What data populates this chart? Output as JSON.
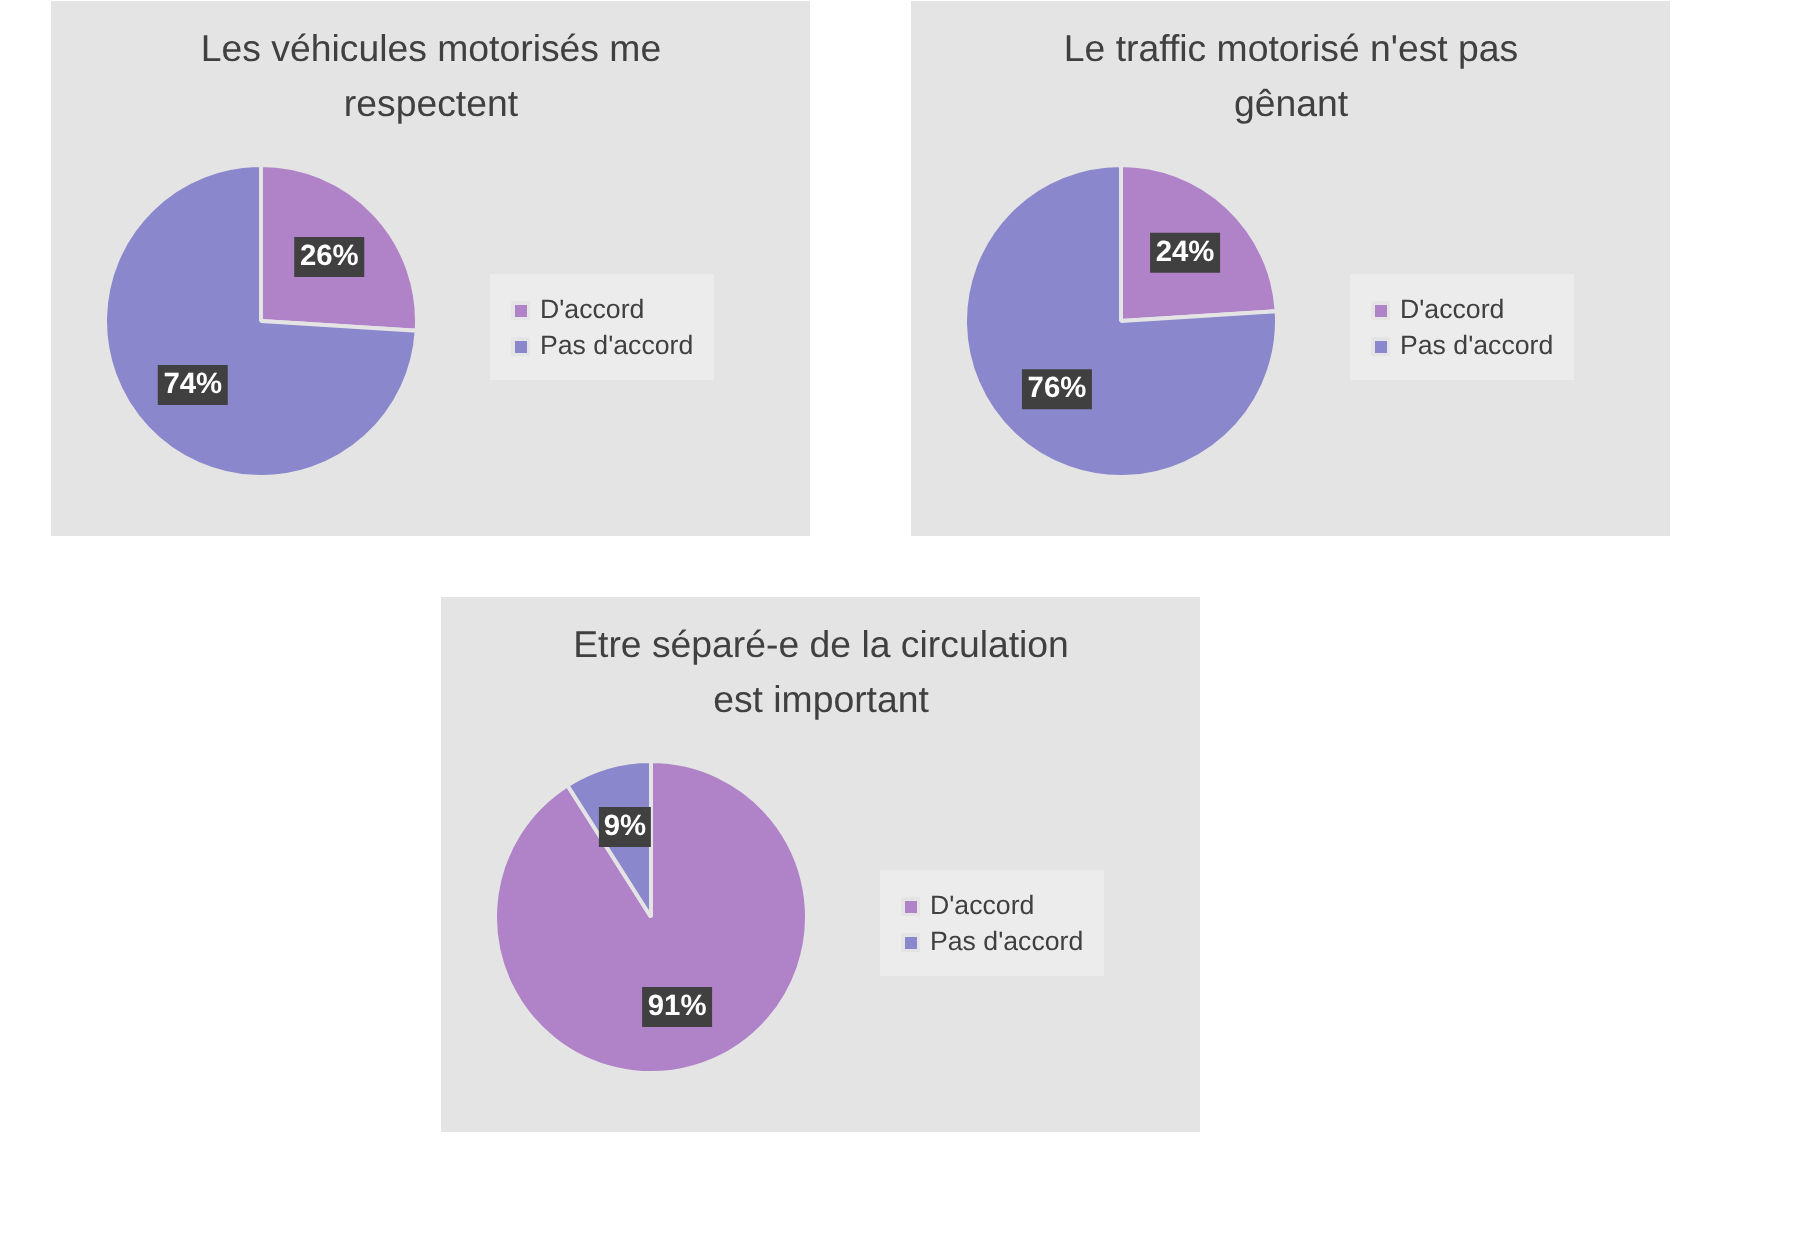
{
  "chart_data": [
    {
      "type": "pie",
      "title": "Les véhicules motorisés me respectent",
      "categories": [
        "D'accord",
        "Pas d'accord"
      ],
      "values": [
        26,
        74
      ],
      "colors": [
        "#b083c8",
        "#8a87cc"
      ],
      "value_labels": [
        "26%",
        "74%"
      ],
      "legend": "right"
    },
    {
      "type": "pie",
      "title": "Le traffic motorisé n'est pas gênant",
      "categories": [
        "D'accord",
        "Pas d'accord"
      ],
      "values": [
        24,
        76
      ],
      "colors": [
        "#b083c8",
        "#8a87cc"
      ],
      "value_labels": [
        "24%",
        "76%"
      ],
      "legend": "right"
    },
    {
      "type": "pie",
      "title": "Etre séparé-e de la circulation est important",
      "categories": [
        "D'accord",
        "Pas d'accord"
      ],
      "values": [
        91,
        9
      ],
      "colors": [
        "#b083c8",
        "#8a87cc"
      ],
      "value_labels": [
        "91%",
        "9%"
      ],
      "legend": "right"
    }
  ]
}
